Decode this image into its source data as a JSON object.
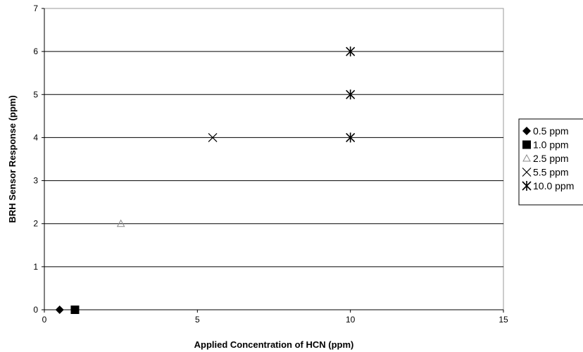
{
  "chart_data": {
    "type": "scatter",
    "title": "",
    "xlabel": "Applied Concentration of HCN (ppm)",
    "ylabel": "BRH Sensor Response (ppm)",
    "xlim": [
      0,
      15
    ],
    "ylim": [
      0,
      7
    ],
    "xticks": [
      0,
      5,
      10,
      15
    ],
    "yticks": [
      0,
      1,
      2,
      3,
      4,
      5,
      6,
      7
    ],
    "grid": "horizontal",
    "legend_position": "right",
    "series": [
      {
        "name": "0.5 ppm",
        "marker": "diamond",
        "color": "#000000",
        "points": [
          [
            0.5,
            0
          ]
        ]
      },
      {
        "name": "1.0 ppm",
        "marker": "square",
        "color": "#000000",
        "points": [
          [
            1.0,
            0
          ]
        ]
      },
      {
        "name": "2.5 ppm",
        "marker": "triangle",
        "color": "#8a8a8a",
        "points": [
          [
            2.5,
            2
          ]
        ]
      },
      {
        "name": "5.5 ppm",
        "marker": "x",
        "color": "#000000",
        "points": [
          [
            5.5,
            4
          ]
        ]
      },
      {
        "name": "10.0 ppm",
        "marker": "asterisk",
        "color": "#000000",
        "points": [
          [
            10,
            4
          ],
          [
            10,
            5
          ],
          [
            10,
            6
          ]
        ]
      }
    ]
  }
}
